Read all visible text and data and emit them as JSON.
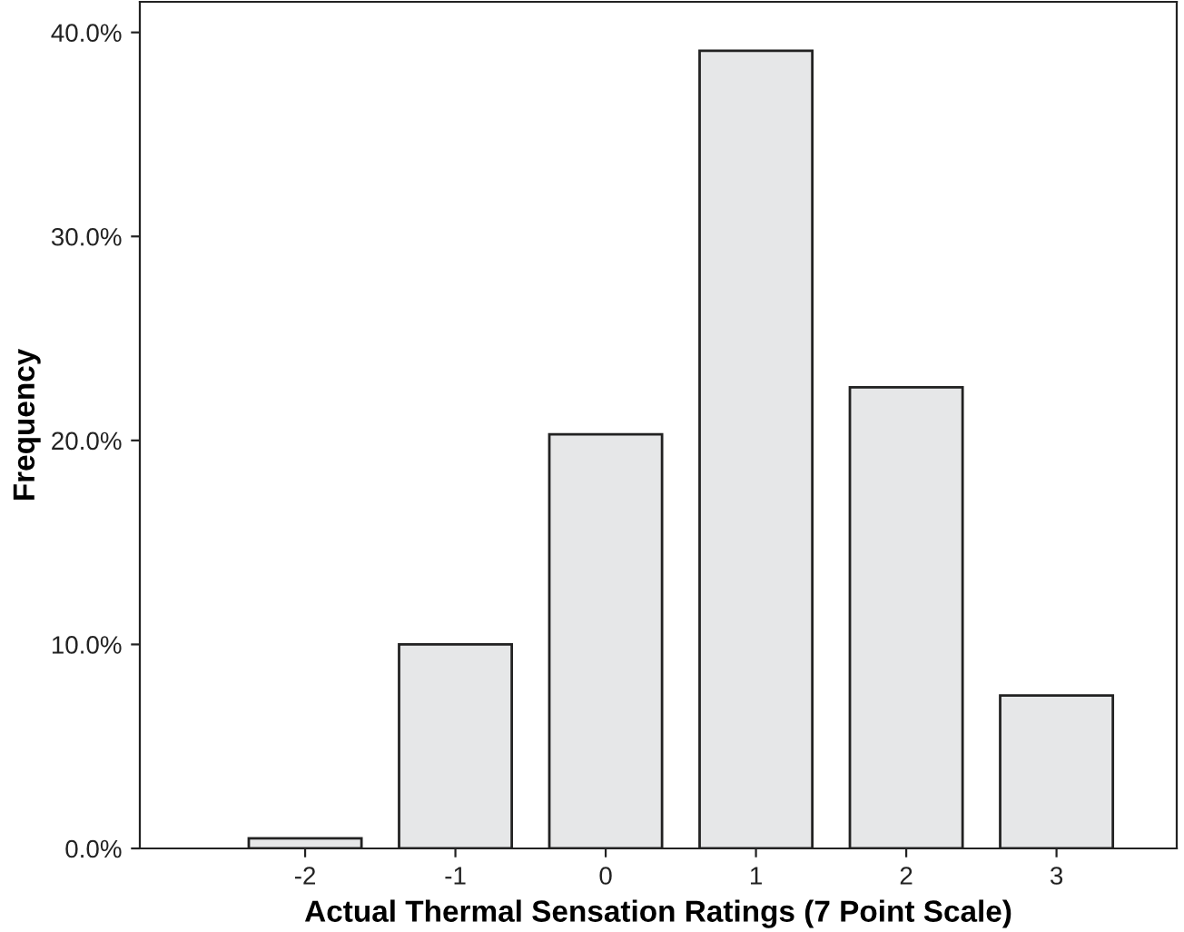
{
  "chart_data": {
    "type": "bar",
    "xlabel": "Actual Thermal Sensation Ratings (7 Point Scale)",
    "ylabel": "Frequency",
    "categories": [
      "-2",
      "-1",
      "0",
      "1",
      "2",
      "3"
    ],
    "values": [
      0.5,
      10.0,
      20.3,
      39.1,
      22.6,
      7.5
    ],
    "color": "#e6e7e8",
    "ylim": [
      0,
      41.5
    ],
    "yticks": [
      {
        "value": 0,
        "label": "0.0%"
      },
      {
        "value": 10,
        "label": "10.0%"
      },
      {
        "value": 20,
        "label": "20.0%"
      },
      {
        "value": 30,
        "label": "30.0%"
      },
      {
        "value": 40,
        "label": "40.0%"
      }
    ],
    "grid": false
  }
}
